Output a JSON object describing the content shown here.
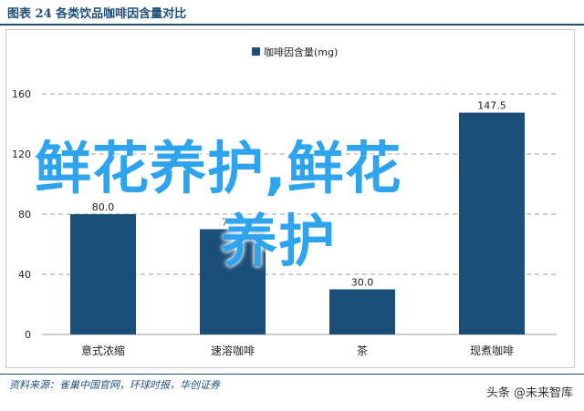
{
  "header": {
    "title": "图表 24   各类饮品咖啡因含量对比"
  },
  "chart_data": {
    "type": "bar",
    "title": "",
    "legend": {
      "label": "咖啡因含量(mg)",
      "placement": "top-center"
    },
    "categories": [
      "意式浓缩",
      "速溶咖啡",
      "茶",
      "现煮咖啡"
    ],
    "series": [
      {
        "name": "咖啡因含量(mg)",
        "values": [
          80.0,
          70.0,
          30.0,
          147.5
        ]
      }
    ],
    "data_labels": [
      "80.0",
      "70.0",
      "30.0",
      "147.5"
    ],
    "y_ticks": [
      "0",
      "40",
      "80",
      "120",
      "160"
    ],
    "ylim": [
      0,
      160
    ],
    "grid": "horizontal-dashed",
    "bar_color": "#1b4f79"
  },
  "overlay": {
    "line1": "鲜花养护,鲜花",
    "line2": "养护"
  },
  "footer": {
    "source": "资料来源：雀巢中国官网，环球时报，华创证券",
    "credit": "头条 @未来智库"
  }
}
